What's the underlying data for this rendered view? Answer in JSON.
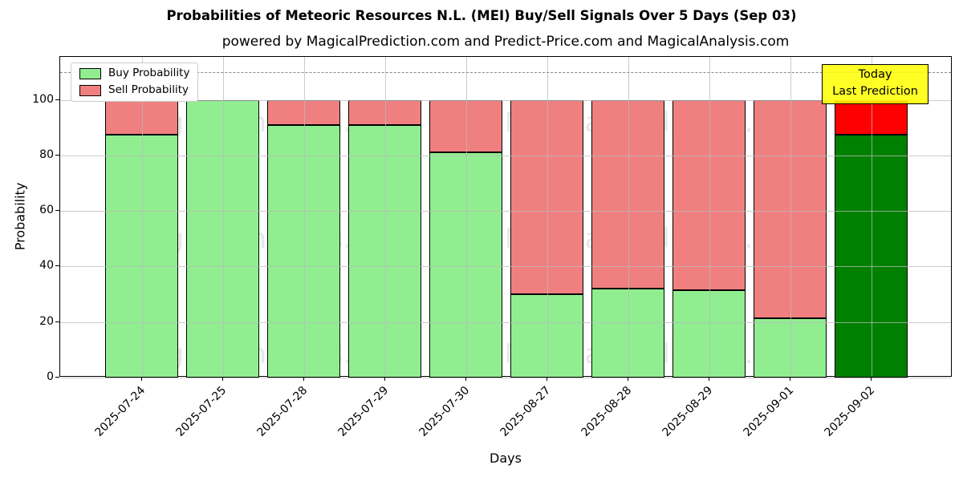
{
  "chart": {
    "title": "Probabilities of Meteoric Resources N.L. (MEI) Buy/Sell Signals Over 5 Days (Sep 03)",
    "subtitle": "powered by MagicalPrediction.com and Predict-Price.com and MagicalAnalysis.com",
    "xlabel": "Days",
    "ylabel": "Probability",
    "legend": [
      {
        "label": "Buy Probability",
        "color": "#90EE90"
      },
      {
        "label": "Sell Probability",
        "color": "#F08080"
      }
    ],
    "annotation": {
      "line1": "Today",
      "line2": "Last Prediction",
      "bg_color": "#FFFF00"
    },
    "watermarks": {
      "left": "MagicalAnalysis.com",
      "right": "MagicalPrediction.com"
    }
  },
  "chart_data": {
    "type": "bar",
    "stacked": true,
    "title": "Probabilities of Meteoric Resources N.L. (MEI) Buy/Sell Signals Over 5 Days (Sep 03)",
    "xlabel": "Days",
    "ylabel": "Probability",
    "categories": [
      "2025-07-24",
      "2025-07-25",
      "2025-07-28",
      "2025-07-29",
      "2025-07-30",
      "2025-08-27",
      "2025-08-28",
      "2025-08-29",
      "2025-09-01",
      "2025-09-02"
    ],
    "series": [
      {
        "name": "Buy Probability",
        "values": [
          87.5,
          100,
          91,
          91,
          81,
          30,
          32,
          31.5,
          21.5,
          87.5
        ]
      },
      {
        "name": "Sell Probability",
        "values": [
          12.5,
          0,
          9,
          9,
          19,
          70,
          68,
          68.5,
          78.5,
          12.5
        ]
      }
    ],
    "today_index": 9,
    "colors": {
      "buy": "#90EE90",
      "sell": "#F08080",
      "buy_today": "#008000",
      "sell_today": "#FF0000",
      "bar_edge": "#000000",
      "grid": "#b9b9b9",
      "dashed_line": "#8a8a8a"
    },
    "yticks": [
      0,
      20,
      40,
      60,
      80,
      100
    ],
    "ylim": [
      0,
      115.5
    ],
    "dashed_line_y": 110,
    "grid": true,
    "legend_position": "upper-left"
  }
}
